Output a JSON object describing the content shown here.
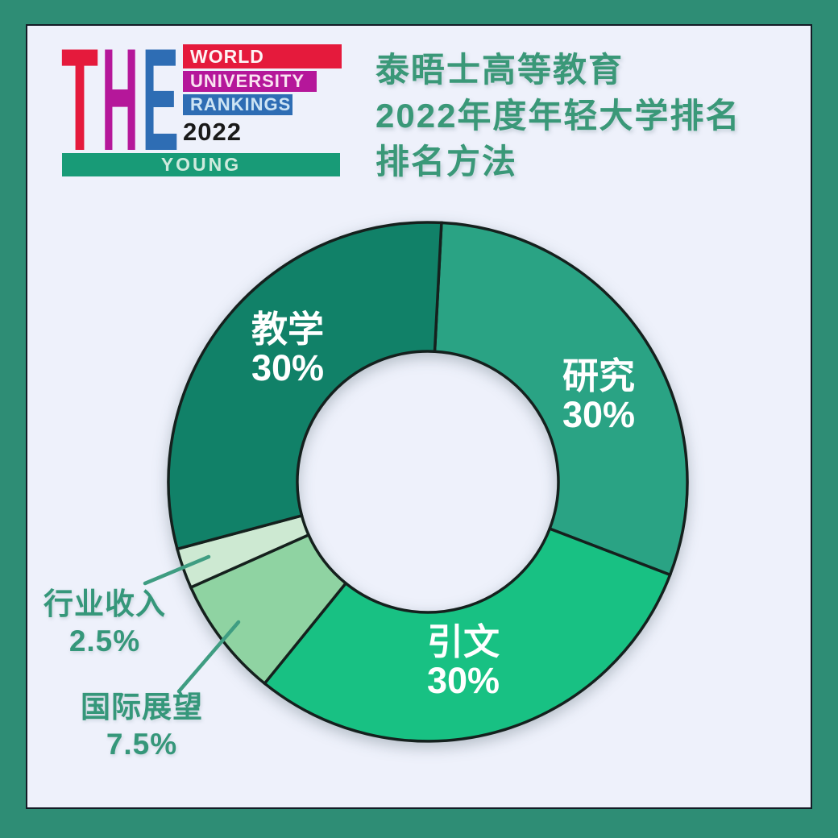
{
  "colors": {
    "frame": "#2e8d75",
    "card": "#eef1fb",
    "title_green": "#3a9878",
    "callout_green": "#35977a",
    "year_text": "#1a1a1a"
  },
  "logo": {
    "letters": [
      {
        "char": "T",
        "color": "#e51a3c"
      },
      {
        "char": "H",
        "color": "#b5179a"
      },
      {
        "char": "E",
        "color": "#2e6db4"
      }
    ],
    "bars": [
      {
        "label": "WORLD",
        "bg": "#e51a3c",
        "color": "#fdf4f5"
      },
      {
        "label": "UNIVERSITY",
        "bg": "#b5179a",
        "color": "#fae3f1"
      },
      {
        "label": "RANKINGS",
        "bg": "#2e6db4",
        "color": "#cde4f4"
      }
    ],
    "year": "2022",
    "young": {
      "label": "YOUNG",
      "bg": "#189b77",
      "color": "#cfeadd"
    }
  },
  "title": {
    "lines": [
      "泰晤士高等教育",
      "2022年度年轻大学排名",
      "排名方法"
    ]
  },
  "chart_data": {
    "type": "pie",
    "subtype": "donut",
    "title": "泰晤士高等教育2022年度年轻大学排名 排名方法",
    "start_angle_deg": 3,
    "direction": "clockwise",
    "inner_radius_ratio": 0.5,
    "stroke": "#15201d",
    "leader_line_color": "#3f9d82",
    "legend_position": "none",
    "slices": [
      {
        "id": "research",
        "label": "研究",
        "value": 30,
        "display": "30%",
        "color": "#2aa384",
        "label_inside": true
      },
      {
        "id": "citations",
        "label": "引文",
        "value": 30,
        "display": "30%",
        "color": "#18c183",
        "label_inside": true
      },
      {
        "id": "intl-outlook",
        "label": "国际展望",
        "value": 7.5,
        "display": "7.5%",
        "color": "#8fd3a2",
        "label_inside": false
      },
      {
        "id": "industry-income",
        "label": "行业收入",
        "value": 2.5,
        "display": "2.5%",
        "color": "#cde9d2",
        "label_inside": false
      },
      {
        "id": "teaching",
        "label": "教学",
        "value": 30,
        "display": "30%",
        "color": "#118168",
        "label_inside": true
      }
    ]
  }
}
